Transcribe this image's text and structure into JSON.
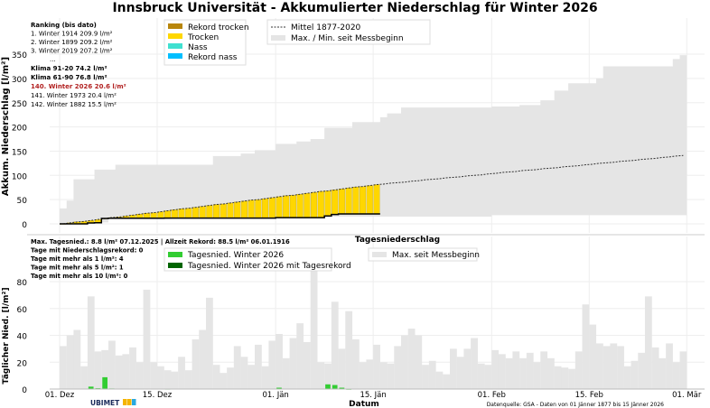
{
  "title": "Innsbruck Universität - Akkumulierter Niederschlag für Winter 2026",
  "colors": {
    "rekord_trocken": "#b8860b",
    "trocken": "#ffd700",
    "nass": "#40e0d0",
    "rekord_nass": "#00bfff",
    "envelope": "#e5e5e5",
    "daily": "#32cd32",
    "daily_record": "#006400"
  },
  "ranking": {
    "header": "Ranking (bis dato)",
    "lines": [
      "1.  Winter 1914  209.9 l/m²",
      "2.  Winter 1899  209.2 l/m²",
      "3.  Winter 2019  207.2 l/m²",
      "..."
    ],
    "klima1": "Klima 91-20 74.2 l/m²",
    "klima2": "Klima 61-90 76.8 l/m²",
    "current": "140.  Winter 2026  20.6 l/m²",
    "after": [
      "141.  Winter 1973  20.4 l/m²",
      "142.  Winter 1882  15.5 l/m²"
    ]
  },
  "stats": [
    "Max. Tagesnied.: 8.8 l/m² 07.12.2025 | Allzeit Rekord: 88.5 l/m² 06.01.1916",
    "Tage mit Niederschlagsrekord: 0",
    "Tage mit mehr als 1 l/m²: 4",
    "Tage mit mehr als 5 l/m²: 1",
    "Tage mit mehr als 10 l/m²: 0"
  ],
  "footer": {
    "logo": "UBIMET",
    "source": "Datenquelle: GSA - Daten von 01 Jänner 1877 bis 15 Jänner 2026"
  },
  "chart_data": [
    {
      "type": "area",
      "title": "",
      "ylabel": "Akkum. Niederschlag [l/m²]",
      "xlabel": "",
      "ylim": [
        -10,
        360
      ],
      "yticks": [
        0,
        50,
        100,
        150,
        200,
        250,
        300,
        350
      ],
      "xticks": [
        "01. Dez",
        "15. Dez",
        "01. Jän",
        "15. Jän",
        "01. Feb",
        "15. Feb",
        "01. Mär"
      ],
      "start_date": "2025-12-01",
      "legend": [
        "Rekord trocken",
        "Trocken",
        "Nass",
        "Rekord nass",
        "Mittel 1877-2020",
        "Max. / Min. seit Messbeginn"
      ],
      "max": [
        32,
        48,
        92,
        92,
        92,
        112,
        112,
        112,
        122,
        122,
        122,
        122,
        122,
        122,
        122,
        122,
        122,
        122,
        122,
        122,
        122,
        122,
        140,
        140,
        140,
        140,
        145,
        145,
        152,
        152,
        152,
        165,
        165,
        165,
        170,
        170,
        175,
        175,
        198,
        198,
        198,
        198,
        210,
        210,
        210,
        210,
        220,
        228,
        228,
        240,
        240,
        240,
        240,
        240,
        240,
        240,
        240,
        240,
        240,
        240,
        240,
        240,
        242,
        242,
        242,
        242,
        245,
        245,
        245,
        255,
        255,
        275,
        275,
        290,
        290,
        290,
        290,
        300,
        325,
        325,
        325,
        325,
        325,
        325,
        325,
        325,
        325,
        325,
        340,
        348
      ],
      "min": [
        0,
        0,
        0,
        3,
        3,
        3,
        3,
        10,
        10,
        10,
        10,
        10,
        10,
        10,
        10,
        10,
        13,
        13,
        13,
        13,
        13,
        13,
        13,
        13,
        13,
        13,
        13,
        13,
        13,
        13,
        13,
        15,
        15,
        15,
        15,
        15,
        15,
        15,
        15,
        15,
        15,
        15,
        15,
        15,
        15,
        15,
        15,
        15,
        15,
        15,
        15,
        15,
        15,
        15,
        15,
        15,
        15,
        15,
        15,
        15,
        15,
        15,
        18,
        18,
        18,
        18,
        18,
        18,
        18,
        18,
        18,
        18,
        18,
        18,
        18,
        18,
        18,
        18,
        18,
        18,
        18,
        18,
        18,
        18,
        18,
        18,
        18,
        18,
        18,
        18
      ],
      "mean": [
        0,
        2,
        4,
        5,
        7,
        9,
        11,
        13,
        14,
        16,
        18,
        20,
        22,
        23,
        25,
        27,
        29,
        31,
        32,
        34,
        36,
        38,
        40,
        41,
        43,
        45,
        47,
        49,
        50,
        52,
        54,
        56,
        58,
        59,
        61,
        63,
        65,
        67,
        68,
        70,
        72,
        74,
        76,
        77,
        79,
        81,
        82,
        84,
        85,
        86,
        88,
        89,
        91,
        92,
        93,
        95,
        96,
        97,
        99,
        100,
        101,
        103,
        104,
        106,
        107,
        108,
        110,
        111,
        112,
        114,
        115,
        116,
        118,
        119,
        120,
        122,
        123,
        125,
        126,
        127,
        129,
        130,
        131,
        133,
        134,
        135,
        137,
        138,
        140,
        141
      ]
    },
    {
      "type": "bar",
      "title": "Tagesniederschlag",
      "ylabel": "Täglicher Nied. [l/m²]",
      "xlabel": "Datum",
      "ylim": [
        0,
        90
      ],
      "yticks": [
        0,
        20,
        40,
        60,
        80
      ],
      "legend": [
        "Tagesnied. Winter 2026",
        "Tagesnied. Winter 2026 mit Tagesrekord",
        "Max. seit Messbeginn"
      ],
      "daily_max": [
        32,
        40,
        44,
        17,
        69,
        28,
        29,
        36,
        25,
        26,
        31,
        20,
        74,
        20,
        17,
        14,
        13,
        24,
        14,
        37,
        44,
        68,
        18,
        12,
        16,
        32,
        24,
        18,
        33,
        17,
        36,
        41,
        23,
        38,
        49,
        35,
        88,
        20,
        19,
        65,
        30,
        58,
        37,
        20,
        22,
        33,
        20,
        19,
        32,
        40,
        45,
        40,
        18,
        21,
        13,
        11,
        30,
        24,
        30,
        38,
        19,
        18,
        29,
        26,
        23,
        28,
        23,
        27,
        20,
        28,
        23,
        17,
        16,
        15,
        28,
        63,
        48,
        34,
        32,
        34,
        32,
        17,
        21,
        27,
        69,
        31,
        23,
        34,
        20,
        28
      ],
      "winter2026": [
        0,
        0,
        0,
        0,
        1.8,
        0.6,
        8.8,
        0.4,
        0,
        0,
        0,
        0,
        0,
        0,
        0,
        0.3,
        0,
        0,
        0,
        0,
        0,
        0,
        0,
        0,
        0,
        0,
        0,
        0,
        0,
        0,
        0,
        1.0,
        0,
        0,
        0,
        0,
        0,
        0,
        3.5,
        3.0,
        1.0,
        0.2,
        0,
        0,
        0,
        0
      ]
    }
  ]
}
